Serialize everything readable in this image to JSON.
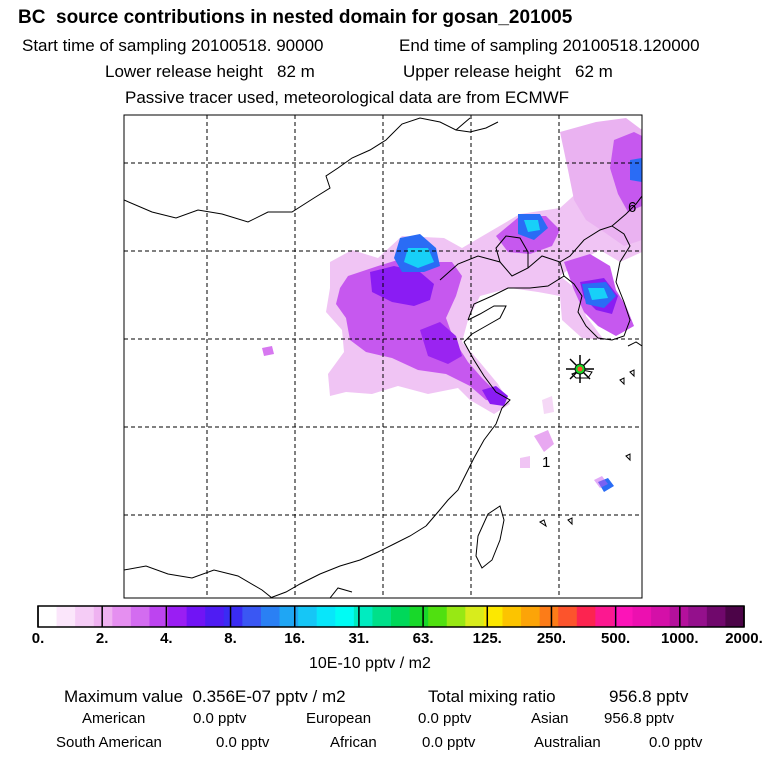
{
  "header": {
    "title": "BC  source contributions in nested domain for gosan_201005",
    "start_label": "Start time of sampling 20100518. 90000",
    "end_label": "End time of sampling 20100518.120000",
    "lower_release": "Lower release height   82 m",
    "upper_release": "Upper release height   62 m",
    "tracer_note": "Passive tracer used, meteorological data are from ECMWF"
  },
  "map": {
    "annotations": [
      "6",
      "1"
    ],
    "receptor": "gosan-receptor-marker"
  },
  "colorbar": {
    "colors": [
      "#ffffff",
      "#fbe6fb",
      "#f5ccf6",
      "#efb2f1",
      "#e58ff0",
      "#d36cf0",
      "#bd44f0",
      "#9a1ef3",
      "#7114f5",
      "#4f1cf3",
      "#3a2cf3",
      "#3a57f3",
      "#2a80f4",
      "#1fa6f4",
      "#16c6f6",
      "#08e6fa",
      "#00fcf4",
      "#00ecc0",
      "#00e08a",
      "#00d85a",
      "#18d82a",
      "#50e010",
      "#98e814",
      "#d8ec1c",
      "#fce800",
      "#fcc400",
      "#fca408",
      "#fc7c18",
      "#fc542c",
      "#fc2450",
      "#fc1890",
      "#fc14b8",
      "#ec10b0",
      "#d410a8",
      "#b4109c",
      "#94108c",
      "#70086c",
      "#4c0448"
    ],
    "tick_labels": [
      "0.",
      "2.",
      "4.",
      "8.",
      "16.",
      "31.",
      "63.",
      "125.",
      "250.",
      "500.",
      "1000.",
      "2000."
    ],
    "unit": "10E-10 pptv / m2"
  },
  "footer": {
    "maximum": "Maximum value  0.356E-07 pptv / m2",
    "total": "Total mixing ratio",
    "total_value": "956.8 pptv",
    "regions": [
      {
        "name": "American",
        "value": "0.0 pptv"
      },
      {
        "name": "European",
        "value": "0.0 pptv"
      },
      {
        "name": "Asian",
        "value": "956.8 pptv"
      },
      {
        "name": "South American",
        "value": "0.0 pptv"
      },
      {
        "name": "African",
        "value": "0.0 pptv"
      },
      {
        "name": "Australian",
        "value": "0.0 pptv"
      }
    ]
  }
}
